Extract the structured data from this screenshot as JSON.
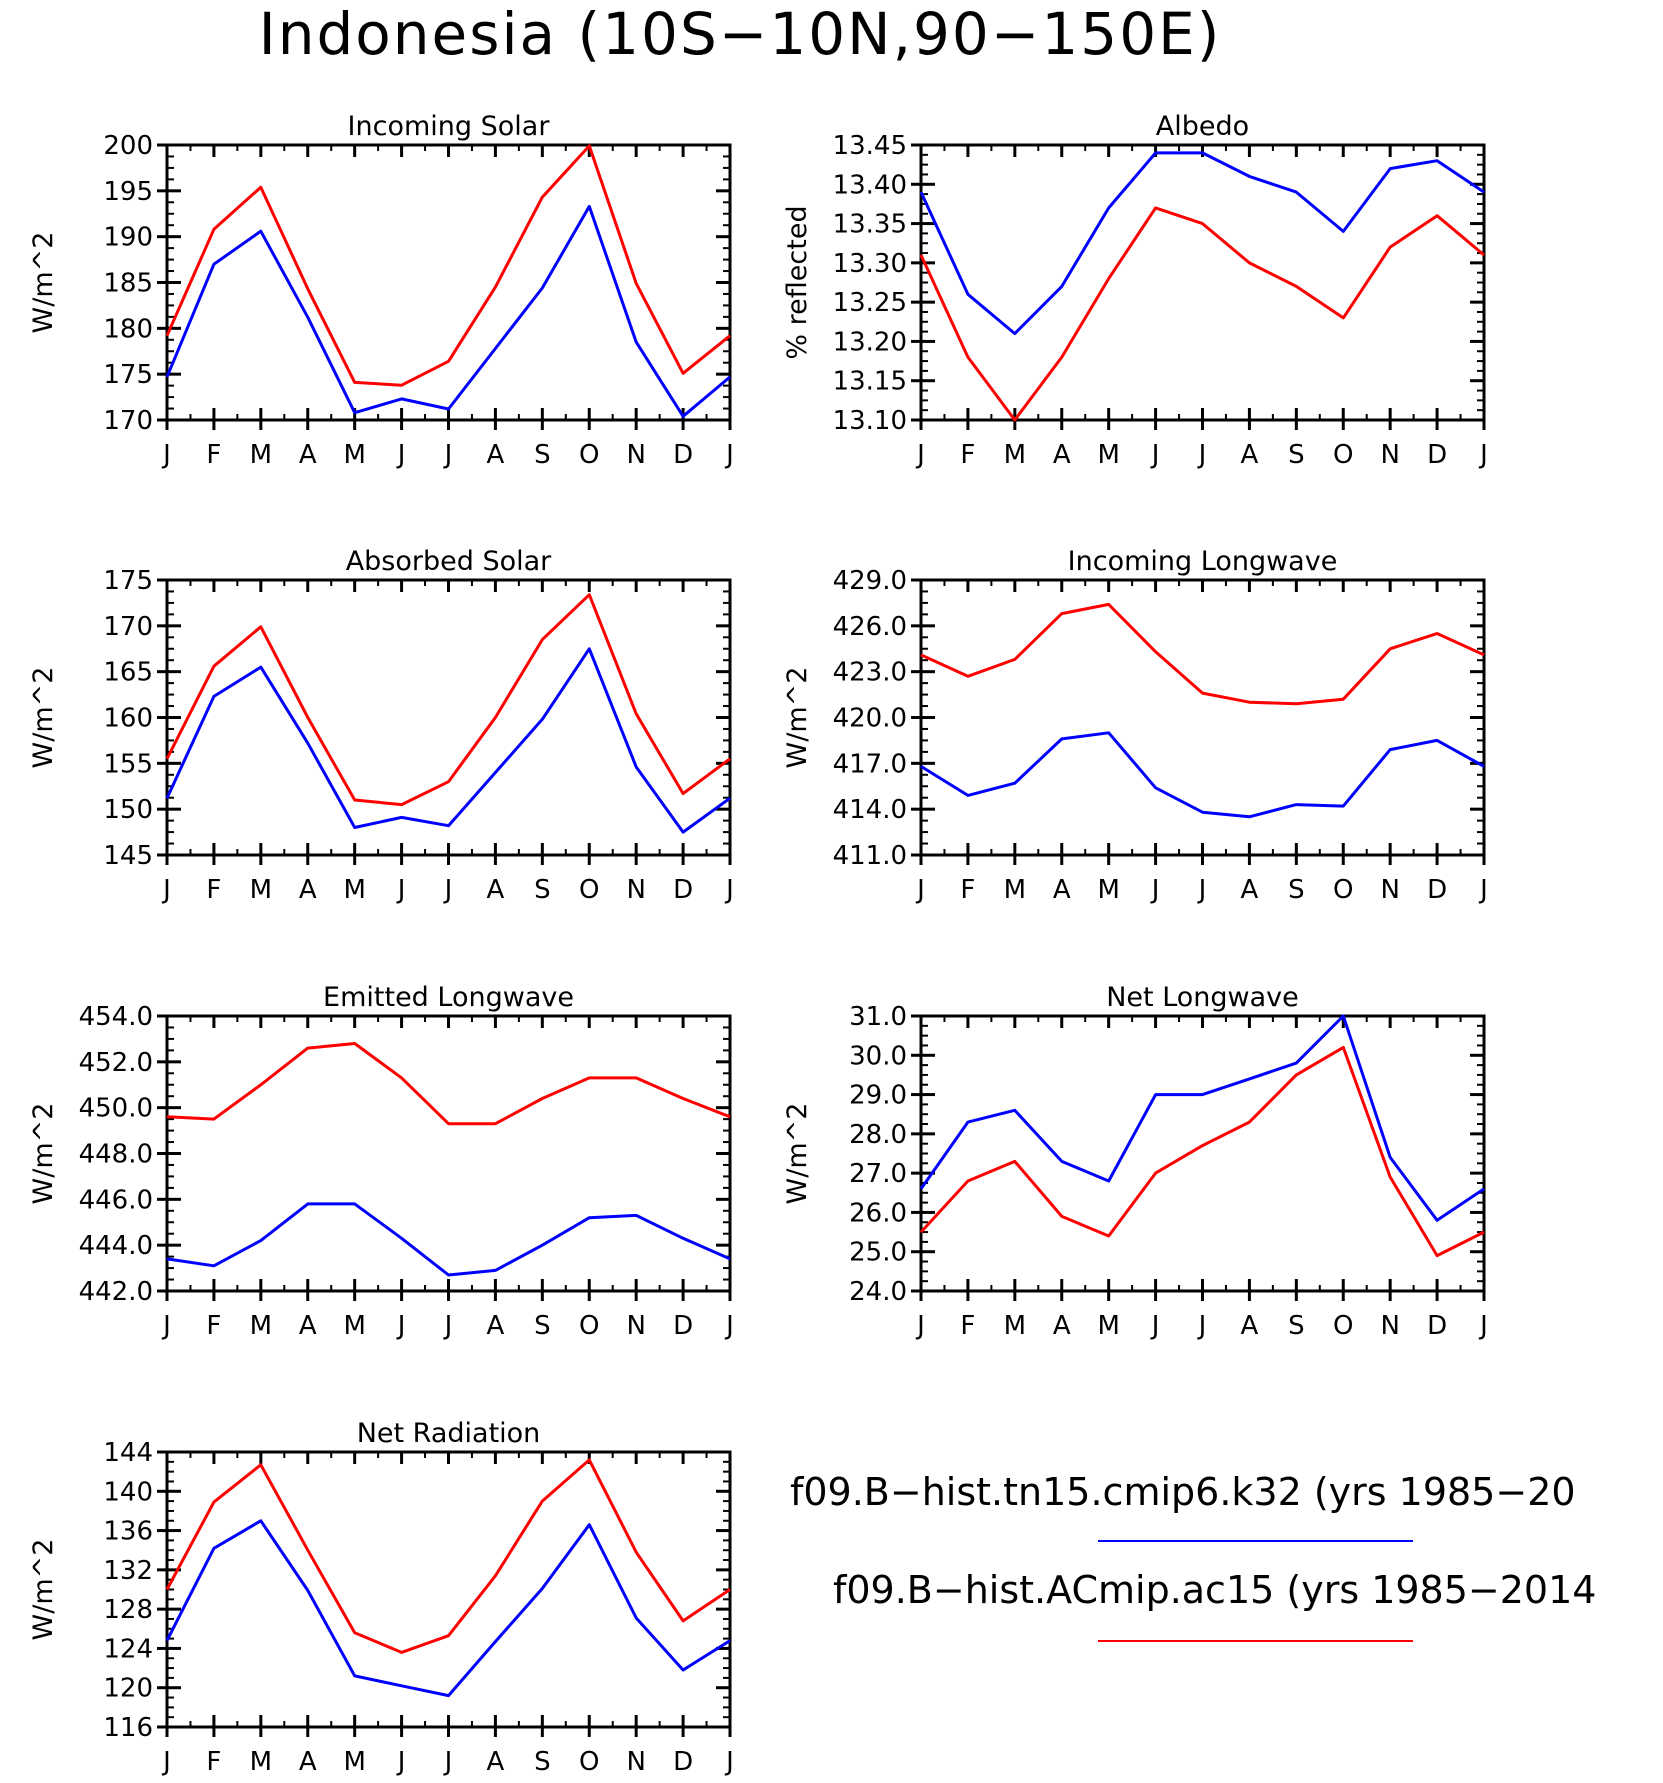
{
  "title": "Indonesia (10S−10N,90−150E)",
  "legend": [
    {
      "label": "f09.B−hist.tn15.cmip6.k32 (yrs 1985−20",
      "color": "#0000ff"
    },
    {
      "label": "f09.B−hist.ACmip.ac15 (yrs 1985−2014",
      "color": "#ff0000"
    }
  ],
  "chart_data": [
    {
      "type": "line",
      "title": "Incoming Solar",
      "ylabel": "W/m^2",
      "ylim": [
        170,
        200
      ],
      "yticks": [
        "170",
        "175",
        "180",
        "185",
        "190",
        "195",
        "200"
      ],
      "categories": [
        "J",
        "F",
        "M",
        "A",
        "M",
        "J",
        "J",
        "A",
        "S",
        "O",
        "N",
        "D",
        "J"
      ],
      "series": [
        {
          "color": "#0000ff",
          "values": [
            174.7,
            187.0,
            190.6,
            181.2,
            170.8,
            172.3,
            171.2,
            177.8,
            184.4,
            193.3,
            178.5,
            170.4,
            174.7
          ]
        },
        {
          "color": "#ff0000",
          "values": [
            179.2,
            190.8,
            195.4,
            184.3,
            174.1,
            173.8,
            176.4,
            184.5,
            194.3,
            199.9,
            184.9,
            175.1,
            179.2
          ]
        }
      ]
    },
    {
      "type": "line",
      "title": "Albedo",
      "ylabel": "% reflected",
      "ylim": [
        13.1,
        13.45
      ],
      "yticks": [
        "13.10",
        "13.15",
        "13.20",
        "13.25",
        "13.30",
        "13.35",
        "13.40",
        "13.45"
      ],
      "categories": [
        "J",
        "F",
        "M",
        "A",
        "M",
        "J",
        "J",
        "A",
        "S",
        "O",
        "N",
        "D",
        "J"
      ],
      "series": [
        {
          "color": "#0000ff",
          "values": [
            13.39,
            13.26,
            13.21,
            13.27,
            13.37,
            13.44,
            13.44,
            13.41,
            13.39,
            13.34,
            13.42,
            13.43,
            13.39
          ]
        },
        {
          "color": "#ff0000",
          "values": [
            13.31,
            13.18,
            13.1,
            13.18,
            13.28,
            13.37,
            13.35,
            13.3,
            13.27,
            13.23,
            13.32,
            13.36,
            13.31
          ]
        }
      ]
    },
    {
      "type": "line",
      "title": "Absorbed Solar",
      "ylabel": "W/m^2",
      "ylim": [
        145,
        175
      ],
      "yticks": [
        "145",
        "150",
        "155",
        "160",
        "165",
        "170",
        "175"
      ],
      "categories": [
        "J",
        "F",
        "M",
        "A",
        "M",
        "J",
        "J",
        "A",
        "S",
        "O",
        "N",
        "D",
        "J"
      ],
      "series": [
        {
          "color": "#0000ff",
          "values": [
            151.2,
            162.3,
            165.5,
            157.2,
            148.0,
            149.1,
            148.2,
            154.0,
            159.8,
            167.5,
            154.6,
            147.5,
            151.2
          ]
        },
        {
          "color": "#ff0000",
          "values": [
            155.5,
            165.6,
            169.9,
            160.0,
            151.0,
            150.5,
            153.0,
            160.0,
            168.5,
            173.4,
            160.4,
            151.7,
            155.5
          ]
        }
      ]
    },
    {
      "type": "line",
      "title": "Incoming Longwave",
      "ylabel": "W/m^2",
      "ylim": [
        411.0,
        429.0
      ],
      "yticks": [
        "411.0",
        "414.0",
        "417.0",
        "420.0",
        "423.0",
        "426.0",
        "429.0"
      ],
      "categories": [
        "J",
        "F",
        "M",
        "A",
        "M",
        "J",
        "J",
        "A",
        "S",
        "O",
        "N",
        "D",
        "J"
      ],
      "series": [
        {
          "color": "#0000ff",
          "values": [
            416.8,
            414.9,
            415.7,
            418.6,
            419.0,
            415.4,
            413.8,
            413.5,
            414.3,
            414.2,
            417.9,
            418.5,
            416.8
          ]
        },
        {
          "color": "#ff0000",
          "values": [
            424.1,
            422.7,
            423.8,
            426.8,
            427.4,
            424.3,
            421.6,
            421.0,
            420.9,
            421.2,
            424.5,
            425.5,
            424.1
          ]
        }
      ]
    },
    {
      "type": "line",
      "title": "Emitted Longwave",
      "ylabel": "W/m^2",
      "ylim": [
        442.0,
        454.0
      ],
      "yticks": [
        "442.0",
        "444.0",
        "446.0",
        "448.0",
        "450.0",
        "452.0",
        "454.0"
      ],
      "categories": [
        "J",
        "F",
        "M",
        "A",
        "M",
        "J",
        "J",
        "A",
        "S",
        "O",
        "N",
        "D",
        "J"
      ],
      "series": [
        {
          "color": "#0000ff",
          "values": [
            443.4,
            443.1,
            444.2,
            445.8,
            445.8,
            444.3,
            442.7,
            442.9,
            444.0,
            445.2,
            445.3,
            444.3,
            443.4
          ]
        },
        {
          "color": "#ff0000",
          "values": [
            449.6,
            449.5,
            451.0,
            452.6,
            452.8,
            451.3,
            449.3,
            449.3,
            450.4,
            451.3,
            451.3,
            450.4,
            449.6
          ]
        }
      ]
    },
    {
      "type": "line",
      "title": "Net Longwave",
      "ylabel": "W/m^2",
      "ylim": [
        24.0,
        31.0
      ],
      "yticks": [
        "24.0",
        "25.0",
        "26.0",
        "27.0",
        "28.0",
        "29.0",
        "30.0",
        "31.0"
      ],
      "categories": [
        "J",
        "F",
        "M",
        "A",
        "M",
        "J",
        "J",
        "A",
        "S",
        "O",
        "N",
        "D",
        "J"
      ],
      "series": [
        {
          "color": "#0000ff",
          "values": [
            26.6,
            28.3,
            28.6,
            27.3,
            26.8,
            29.0,
            29.0,
            29.4,
            29.8,
            31.0,
            27.4,
            25.8,
            26.6
          ]
        },
        {
          "color": "#ff0000",
          "values": [
            25.5,
            26.8,
            27.3,
            25.9,
            25.4,
            27.0,
            27.7,
            28.3,
            29.5,
            30.2,
            26.9,
            24.9,
            25.5
          ]
        }
      ]
    },
    {
      "type": "line",
      "title": "Net Radiation",
      "ylabel": "W/m^2",
      "ylim": [
        116,
        144
      ],
      "yticks": [
        "116",
        "120",
        "124",
        "128",
        "132",
        "136",
        "140",
        "144"
      ],
      "categories": [
        "J",
        "F",
        "M",
        "A",
        "M",
        "J",
        "J",
        "A",
        "S",
        "O",
        "N",
        "D",
        "J"
      ],
      "series": [
        {
          "color": "#0000ff",
          "values": [
            124.8,
            134.2,
            137.0,
            129.9,
            121.2,
            120.2,
            119.2,
            124.7,
            130.1,
            136.6,
            127.1,
            121.8,
            124.8
          ]
        },
        {
          "color": "#ff0000",
          "values": [
            130.0,
            138.9,
            142.7,
            134.0,
            125.6,
            123.6,
            125.3,
            131.4,
            139.0,
            143.2,
            133.8,
            126.8,
            130.0
          ]
        }
      ]
    }
  ]
}
